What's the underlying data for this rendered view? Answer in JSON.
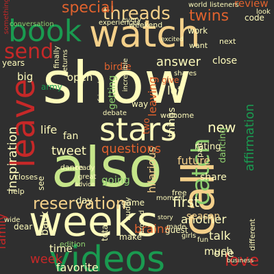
{
  "background_color": "#2f2f2f",
  "palette": {
    "cream": "#fffcbc",
    "wheat": "#f4d08a",
    "peach": "#f6a35a",
    "lime": "#c6e58a",
    "sage": "#8fcf6f",
    "green": "#1a9a50",
    "red": "#c62828",
    "orange": "#e0622e"
  },
  "words": [
    {
      "text": "show",
      "color": "cream"
    },
    {
      "text": "watch",
      "color": "wheat"
    },
    {
      "text": "weeks",
      "color": "cream"
    },
    {
      "text": "also",
      "color": "lime"
    },
    {
      "text": "call",
      "color": "wheat"
    },
    {
      "text": "videos",
      "color": "green"
    },
    {
      "text": "leave",
      "color": "red"
    },
    {
      "text": "book",
      "color": "green"
    },
    {
      "text": "stars",
      "color": "cream"
    },
    {
      "text": "catch",
      "color": "sage"
    },
    {
      "text": "send",
      "color": "red"
    },
    {
      "text": "reservation",
      "color": "wheat"
    },
    {
      "text": "threads",
      "color": "wheat"
    },
    {
      "text": "twins",
      "color": "orange"
    },
    {
      "text": "special",
      "color": "orange"
    },
    {
      "text": "answer",
      "color": "cream"
    },
    {
      "text": "new",
      "color": "cream"
    },
    {
      "text": "questions",
      "color": "orange"
    },
    {
      "text": "inspiration",
      "color": "cream"
    },
    {
      "text": "tweet",
      "color": "cream"
    },
    {
      "text": "first",
      "color": "cream"
    },
    {
      "text": "week",
      "color": "red"
    },
    {
      "text": "love",
      "color": "red"
    },
    {
      "text": "talk",
      "color": "cream"
    },
    {
      "text": "time",
      "color": "cream"
    },
    {
      "text": "favorite",
      "color": "cream"
    },
    {
      "text": "family",
      "color": "red"
    },
    {
      "text": "another",
      "color": "cream"
    },
    {
      "text": "future",
      "color": "wheat"
    },
    {
      "text": "one",
      "color": "cream"
    },
    {
      "text": "much",
      "color": "cream"
    },
    {
      "text": "back",
      "color": "cream"
    },
    {
      "text": "season",
      "color": "wheat"
    },
    {
      "text": "brains",
      "color": "orange"
    },
    {
      "text": "affirmation",
      "color": "green"
    },
    {
      "text": "review",
      "color": "orange"
    },
    {
      "text": "life",
      "color": "cream"
    },
    {
      "text": "open",
      "color": "cream"
    },
    {
      "text": "lot",
      "color": "cream"
    },
    {
      "text": "close",
      "color": "cream"
    },
    {
      "text": "big",
      "color": "cream"
    },
    {
      "text": "things",
      "color": "cream"
    },
    {
      "text": "share",
      "color": "cream"
    },
    {
      "text": "rating",
      "color": "cream"
    },
    {
      "text": "fan",
      "color": "cream"
    },
    {
      "text": "leaving",
      "color": "orange"
    },
    {
      "text": "experiences",
      "color": "cream"
    },
    {
      "text": "conversation",
      "color": "sage"
    },
    {
      "text": "weekend",
      "color": "cream"
    },
    {
      "text": "code",
      "color": "cream"
    },
    {
      "text": "look",
      "color": "cream"
    },
    {
      "text": "years",
      "color": "cream"
    },
    {
      "text": "game",
      "color": "cream"
    },
    {
      "text": "day",
      "color": "cream"
    },
    {
      "text": "going",
      "color": "sage"
    },
    {
      "text": "dancing",
      "color": "sage"
    },
    {
      "text": "part",
      "color": "cream"
    },
    {
      "text": "hilarious",
      "color": "wheat"
    },
    {
      "text": "work",
      "color": "cream"
    },
    {
      "text": "want",
      "color": "cream"
    },
    {
      "text": "next",
      "color": "cream"
    },
    {
      "text": "world",
      "color": "cream"
    },
    {
      "text": "listeners",
      "color": "cream"
    },
    {
      "text": "every",
      "color": "cream"
    },
    {
      "text": "dance",
      "color": "cream"
    },
    {
      "text": "closes",
      "color": "cream"
    },
    {
      "text": "help",
      "color": "cream"
    },
    {
      "text": "edition",
      "color": "sage"
    },
    {
      "text": "make",
      "color": "cream"
    },
    {
      "text": "total",
      "color": "cream"
    },
    {
      "text": "buddy",
      "color": "cream"
    },
    {
      "text": "dear",
      "color": "cream"
    },
    {
      "text": "free",
      "color": "cream"
    },
    {
      "text": "guest",
      "color": "cream"
    },
    {
      "text": "made",
      "color": "cream"
    },
    {
      "text": "business",
      "color": "cream"
    },
    {
      "text": "different",
      "color": "cream"
    },
    {
      "text": "ready",
      "color": "cream"
    },
    {
      "text": "two",
      "color": "orange"
    },
    {
      "text": "way",
      "color": "cream"
    },
    {
      "text": "getting",
      "color": "sage"
    },
    {
      "text": "give",
      "color": "orange"
    },
    {
      "text": "welcome",
      "color": "cream"
    },
    {
      "text": "shares",
      "color": "cream"
    },
    {
      "text": "finally",
      "color": "cream"
    },
    {
      "text": "returns",
      "color": "cream"
    },
    {
      "text": "birdie",
      "color": "orange"
    },
    {
      "text": "army",
      "color": "green"
    },
    {
      "text": "debate",
      "color": "cream"
    },
    {
      "text": "friends",
      "color": "cream"
    },
    {
      "text": "incredible",
      "color": "cream"
    },
    {
      "text": "moment",
      "color": "cream"
    },
    {
      "text": "story",
      "color": "cream"
    },
    {
      "text": "advice",
      "color": "cream"
    },
    {
      "text": "great",
      "color": "cream"
    },
    {
      "text": "excited",
      "color": "cream"
    },
    {
      "text": "something",
      "color": "red"
    },
    {
      "text": "see",
      "color": "cream"
    },
    {
      "text": "wide",
      "color": "cream"
    },
    {
      "text": "around",
      "color": "cream"
    },
    {
      "text": "fun",
      "color": "cream"
    },
    {
      "text": "girls",
      "color": "cream"
    }
  ]
}
